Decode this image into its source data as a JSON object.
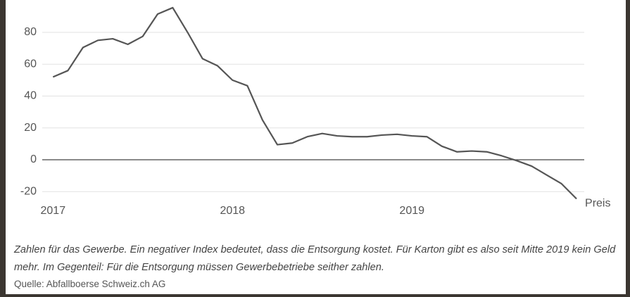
{
  "chart_data": {
    "type": "line",
    "x": [
      2017,
      2017.083,
      2017.167,
      2017.25,
      2017.333,
      2017.417,
      2017.5,
      2017.583,
      2017.667,
      2017.75,
      2017.833,
      2017.917,
      2018,
      2018.083,
      2018.167,
      2018.25,
      2018.333,
      2018.417,
      2018.5,
      2018.583,
      2018.667,
      2018.75,
      2018.833,
      2018.917,
      2019,
      2019.083,
      2019.167,
      2019.25,
      2019.333,
      2019.417,
      2019.5,
      2019.583,
      2019.667,
      2019.75,
      2019.833,
      2019.917
    ],
    "series": [
      {
        "name": "Preis",
        "color": "#555555",
        "values": [
          52,
          56,
          70.5,
          75,
          76,
          72.5,
          77.5,
          91.5,
          95.5,
          80,
          63.5,
          59,
          50,
          46.5,
          25,
          9.5,
          10.5,
          14.5,
          16.5,
          15,
          14.5,
          14.5,
          15.5,
          16,
          15,
          14.5,
          8.5,
          5,
          5.5,
          5,
          2.5,
          -0.5,
          -4,
          -9.5,
          -15,
          -24.5
        ]
      }
    ],
    "xlim": [
      2016.94,
      2019.96
    ],
    "xticks": [
      2017,
      2018,
      2019
    ],
    "ylim": [
      -25,
      100
    ],
    "yticks": [
      -20,
      0,
      20,
      40,
      60,
      80
    ],
    "grid": true,
    "caption": "Zahlen für das Gewerbe. Ein negativer Index bedeutet, dass die Entsorgung kostet. Für Karton gibt es also seit Mitte 2019 kein Geld mehr. Im Gegenteil: Für die Entsorgung müssen Gewerbebetriebe seither zahlen.",
    "source": "Quelle: Abfallboerse Schweiz.ch AG"
  }
}
